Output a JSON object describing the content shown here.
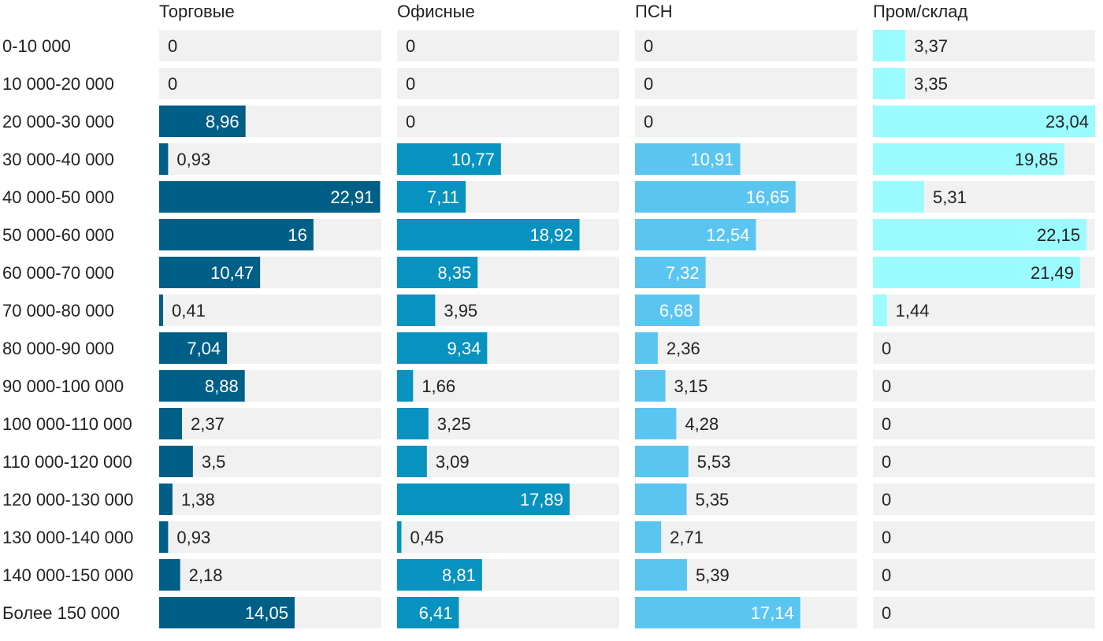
{
  "chart_data": {
    "type": "bar",
    "orientation": "horizontal",
    "layout": "small-multiples",
    "categories": [
      "0-10 000",
      "10 000-20 000",
      "20 000-30 000",
      "30 000-40 000",
      "40 000-50 000",
      "50 000-60 000",
      "60 000-70 000",
      "70 000-80 000",
      "80 000-90 000",
      "90 000-100 000",
      "100 000-110 000",
      "110 000-120 000",
      "120 000-130 000",
      "130 000-140 000",
      "140 000-150 000",
      "Более 150 000"
    ],
    "xlim": [
      0,
      23.04
    ],
    "grid": false,
    "series": [
      {
        "name": "Торговые",
        "color": "#005f87",
        "values": [
          0,
          0,
          8.96,
          0.93,
          22.91,
          16,
          10.47,
          0.41,
          7.04,
          8.88,
          2.37,
          3.5,
          1.38,
          0.93,
          2.18,
          14.05
        ],
        "labels": [
          "0",
          "0",
          "8,96",
          "0,93",
          "22,91",
          "16",
          "10,47",
          "0,41",
          "7,04",
          "8,88",
          "2,37",
          "3,5",
          "1,38",
          "0,93",
          "2,18",
          "14,05"
        ]
      },
      {
        "name": "Офисные",
        "color": "#0792bf",
        "values": [
          0,
          0,
          0,
          10.77,
          7.11,
          18.92,
          8.35,
          3.95,
          9.34,
          1.66,
          3.25,
          3.09,
          17.89,
          0.45,
          8.81,
          6.41
        ],
        "labels": [
          "0",
          "0",
          "0",
          "10,77",
          "7,11",
          "18,92",
          "8,35",
          "3,95",
          "9,34",
          "1,66",
          "3,25",
          "3,09",
          "17,89",
          "0,45",
          "8,81",
          "6,41"
        ]
      },
      {
        "name": "ПСН",
        "color": "#5bc5f2",
        "values": [
          0,
          0,
          0,
          10.91,
          16.65,
          12.54,
          7.32,
          6.68,
          2.36,
          3.15,
          4.28,
          5.53,
          5.35,
          2.71,
          5.39,
          17.14
        ],
        "labels": [
          "0",
          "0",
          "0",
          "10,91",
          "16,65",
          "12,54",
          "7,32",
          "6,68",
          "2,36",
          "3,15",
          "4,28",
          "5,53",
          "5,35",
          "2,71",
          "5,39",
          "17,14"
        ]
      },
      {
        "name": "Пром/склад",
        "color": "#9bfbfe",
        "values": [
          3.37,
          3.35,
          23.04,
          19.85,
          5.31,
          22.15,
          21.49,
          1.44,
          0,
          0,
          0,
          0,
          0,
          0,
          0,
          0
        ],
        "labels": [
          "3,37",
          "3,35",
          "23,04",
          "19,85",
          "5,31",
          "22,15",
          "21,49",
          "1,44",
          "0",
          "0",
          "0",
          "0",
          "0",
          "0",
          "0",
          "0"
        ]
      }
    ],
    "track_color": "#f1f1f1"
  }
}
